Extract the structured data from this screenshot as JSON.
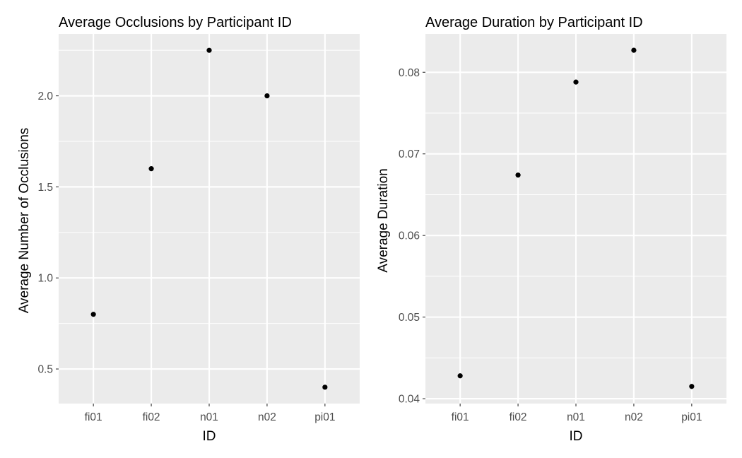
{
  "chart_data": [
    {
      "type": "scatter",
      "title": "Average Occlusions by Participant ID",
      "xlabel": "ID",
      "ylabel": "Average Number of Occlusions",
      "categories": [
        "fi01",
        "fi02",
        "n01",
        "n02",
        "pi01"
      ],
      "values": [
        0.8,
        1.6,
        2.25,
        2.0,
        0.4
      ],
      "ylim": [
        0.31,
        2.34
      ],
      "yticks": [
        0.5,
        1.0,
        1.5,
        2.0
      ],
      "ytick_labels": [
        "0.5",
        "1.0",
        "1.5",
        "2.0"
      ],
      "grid": true,
      "color": "#000000"
    },
    {
      "type": "scatter",
      "title": "Average Duration by Participant ID",
      "xlabel": "ID",
      "ylabel": "Average Duration",
      "categories": [
        "fi01",
        "fi02",
        "n01",
        "n02",
        "pi01"
      ],
      "values": [
        0.0428,
        0.0674,
        0.0788,
        0.0827,
        0.0415
      ],
      "ylim": [
        0.0394,
        0.0847
      ],
      "yticks": [
        0.04,
        0.05,
        0.06,
        0.07,
        0.08
      ],
      "ytick_labels": [
        "0.04",
        "0.05",
        "0.06",
        "0.07",
        "0.08"
      ],
      "grid": true,
      "color": "#000000"
    }
  ]
}
